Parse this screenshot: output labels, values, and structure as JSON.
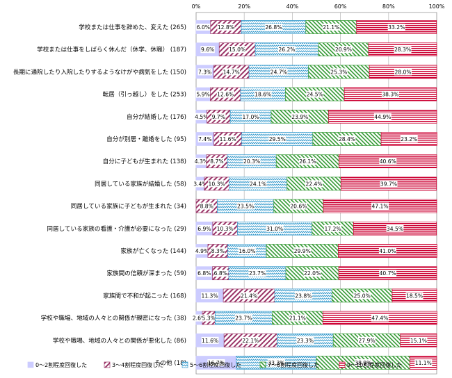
{
  "chart_data": {
    "type": "bar",
    "orientation": "horizontal",
    "stacked": true,
    "percent": true,
    "xlim": [
      0,
      100
    ],
    "x_ticks": [
      "0%",
      "20%",
      "40%",
      "60%",
      "80%",
      "100%"
    ],
    "grid": true,
    "legend_position": "bottom",
    "categories": [
      "学校または仕事を辞めた、変えた (265)",
      "学校または仕事をしばらく休んだ（休学、休職） (187)",
      "長期に通院したり入院したりするようなけがや病気をした (150)",
      "転居（引っ越し）をした (253)",
      "自分が結婚した (176)",
      "自分が別居・離婚をした (95)",
      "自分に子どもが生まれた (138)",
      "同居している家族が結婚した (58)",
      "同居している家族に子どもが生まれた (34)",
      "同居している家族の看護・介護が必要になった (29)",
      "家族が亡くなった (144)",
      "家族間の信頼が深まった (59)",
      "家族間で不和が起こった (168)",
      "学校や職場、地域の人々との関係が親密になった (38)",
      "学校や職場、地域の人々との関係が悪化した (86)",
      "その他 (18)"
    ],
    "series": [
      {
        "name": "0～2割程度回復した",
        "color": "#ccccff",
        "pattern": "solid",
        "values": [
          6.0,
          9.6,
          7.3,
          5.9,
          4.5,
          7.4,
          4.3,
          3.4,
          0,
          6.9,
          4.9,
          6.8,
          11.3,
          2.6,
          11.6,
          16.7
        ]
      },
      {
        "name": "3～4割程度回復した",
        "color": "#993366",
        "pattern": "diagonal",
        "values": [
          12.8,
          15.0,
          14.7,
          12.6,
          9.7,
          11.6,
          8.7,
          10.3,
          8.8,
          10.3,
          8.3,
          6.8,
          21.4,
          5.3,
          22.1,
          0
        ]
      },
      {
        "name": "5～6割程度回復した",
        "color": "#3399cc",
        "pattern": "zigzag",
        "values": [
          26.8,
          26.2,
          24.7,
          18.6,
          17.0,
          29.5,
          20.3,
          24.1,
          23.5,
          31.0,
          16.0,
          23.7,
          23.8,
          23.7,
          23.3,
          33.3
        ]
      },
      {
        "name": "7～8割程度回復した",
        "color": "#339933",
        "pattern": "diagonal",
        "values": [
          21.1,
          20.9,
          25.3,
          24.5,
          23.9,
          28.4,
          26.1,
          22.4,
          20.6,
          17.2,
          29.9,
          22.0,
          25.0,
          21.1,
          27.9,
          38.9
        ]
      },
      {
        "name": "9～10割程度回復した",
        "color": "#cc0033",
        "pattern": "horizontal",
        "values": [
          33.2,
          28.3,
          28.0,
          38.3,
          44.9,
          23.2,
          40.6,
          39.7,
          47.1,
          34.5,
          41.0,
          40.7,
          18.5,
          47.4,
          15.1,
          11.1
        ]
      }
    ],
    "data_labels": [
      [
        "6.0%",
        "12.8%",
        "26.8%",
        "21.1%",
        "33.2%"
      ],
      [
        "9.6%",
        "15.0%",
        "26.2%",
        "20.9%",
        "28.3%"
      ],
      [
        "7.3%",
        "14.7%",
        "24.7%",
        "25.3%",
        "28.0%"
      ],
      [
        "5.9%",
        "12.6%",
        "18.6%",
        "24.5%",
        "38.3%"
      ],
      [
        "4.5%",
        "9.7%",
        "17.0%",
        "23.9%",
        "44.9%"
      ],
      [
        "7.4%",
        "11.6%",
        "29.5%",
        "28.4%",
        "23.2%"
      ],
      [
        "4.3%",
        "8.7%",
        "20.3%",
        "26.1%",
        "40.6%"
      ],
      [
        "3.4%",
        "10.3%",
        "24.1%",
        "22.4%",
        "39.7%"
      ],
      [
        "",
        "8.8%",
        "23.5%",
        "20.6%",
        "47.1%"
      ],
      [
        "6.9%",
        "10.3%",
        "31.0%",
        "17.2%",
        "34.5%"
      ],
      [
        "4.9%",
        "8.3%",
        "16.0%",
        "29.9%",
        "41.0%"
      ],
      [
        "6.8%",
        "6.8%",
        "23.7%",
        "22.0%",
        "40.7%"
      ],
      [
        "11.3%",
        "21.4%",
        "23.8%",
        "25.0%",
        "18.5%"
      ],
      [
        "2.6%",
        "5.3%",
        "23.7%",
        "21.1%",
        "47.4%"
      ],
      [
        "11.6%",
        "22.1%",
        "23.3%",
        "27.9%",
        "15.1%"
      ],
      [
        "16.7%",
        "",
        "33.3%",
        "38.9%",
        "11.1%"
      ]
    ]
  }
}
